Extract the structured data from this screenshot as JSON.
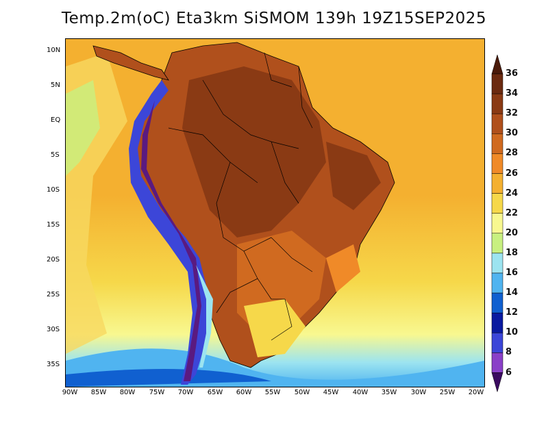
{
  "title": "Temp.2m(oC) Eta3km SiSMOM 139h 19Z15SEP2025",
  "lat_ticks": [
    "10N",
    "5N",
    "EQ",
    "5S",
    "10S",
    "15S",
    "20S",
    "25S",
    "30S",
    "35S"
  ],
  "lon_ticks": [
    "90W",
    "85W",
    "80W",
    "75W",
    "70W",
    "65W",
    "60W",
    "55W",
    "50W",
    "45W",
    "40W",
    "35W",
    "30W",
    "25W",
    "20W"
  ],
  "colorbar": {
    "labels": [
      "36",
      "34",
      "32",
      "30",
      "28",
      "26",
      "24",
      "22",
      "20",
      "18",
      "16",
      "14",
      "12",
      "10",
      "8",
      "6"
    ],
    "colors": [
      "#6b2a10",
      "#8a3a14",
      "#b0501c",
      "#d06a20",
      "#f08a28",
      "#f4b030",
      "#f6d84a",
      "#f8f890",
      "#c8f080",
      "#9ce4f0",
      "#50b4f0",
      "#1060d0",
      "#0a1aa0",
      "#3c46d8",
      "#8a40c8",
      "#5a1a80"
    ],
    "top_arrow_color": "#4a1a0a",
    "bottom_arrow_color": "#3a0a60"
  },
  "field_colors": {
    "ocean_warm": "#f4b030",
    "ocean_mid": "#f6d84a",
    "ocean_cool": "#f8f890",
    "ocean_cold": "#9ce4f0",
    "land_hot": "#b0501c",
    "land_hotter": "#8a3a14",
    "andes": "#3c46d8",
    "andes_cold": "#5a1a80",
    "coast": "#000000"
  }
}
